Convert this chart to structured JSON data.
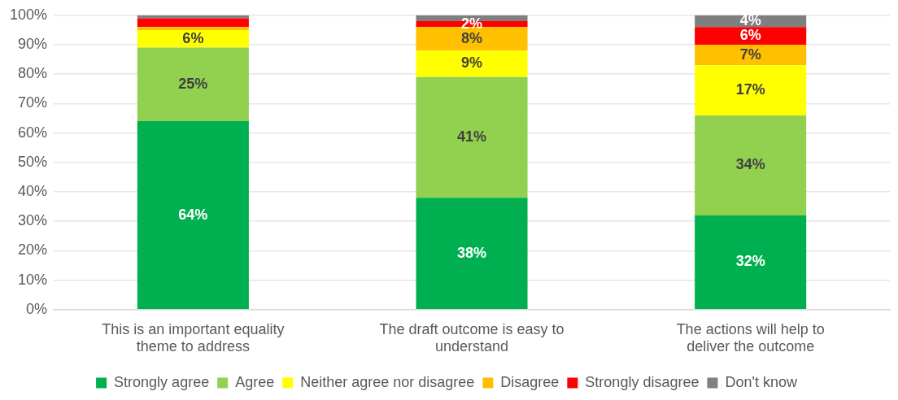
{
  "chart_data": {
    "type": "bar",
    "stacked": true,
    "categories": [
      "This is an important equality theme to address",
      "The draft outcome is easy to understand",
      "The actions will help to deliver the outcome"
    ],
    "series": [
      {
        "name": "Strongly agree",
        "color": "#00b050",
        "values": [
          64,
          38,
          32
        ],
        "value_labels": [
          "64%",
          "38%",
          "32%"
        ]
      },
      {
        "name": "Agree",
        "color": "#92d050",
        "values": [
          25,
          41,
          34
        ],
        "value_labels": [
          "25%",
          "41%",
          "34%"
        ]
      },
      {
        "name": "Neither agree nor disagree",
        "color": "#ffff00",
        "values": [
          6,
          9,
          17
        ],
        "value_labels": [
          "6%",
          "9%",
          "17%"
        ]
      },
      {
        "name": "Disagree",
        "color": "#ffc000",
        "values": [
          1,
          8,
          7
        ],
        "value_labels": [
          null,
          "8%",
          "7%"
        ]
      },
      {
        "name": "Strongly disagree",
        "color": "#ff0000",
        "values": [
          3,
          2,
          6
        ],
        "value_labels": [
          null,
          "2%",
          "6%"
        ]
      },
      {
        "name": "Don't know",
        "color": "#7f7f7f",
        "values": [
          1,
          2,
          4
        ],
        "value_labels": [
          null,
          null,
          "4%"
        ]
      }
    ],
    "ylim": [
      0,
      100
    ],
    "yticks": [
      {
        "value": 0,
        "label": "0%"
      },
      {
        "value": 10,
        "label": "10%"
      },
      {
        "value": 20,
        "label": "20%"
      },
      {
        "value": 30,
        "label": "30%"
      },
      {
        "value": 40,
        "label": "40%"
      },
      {
        "value": 50,
        "label": "50%"
      },
      {
        "value": 60,
        "label": "60%"
      },
      {
        "value": 70,
        "label": "70%"
      },
      {
        "value": 80,
        "label": "80%"
      },
      {
        "value": 90,
        "label": "90%"
      },
      {
        "value": 100,
        "label": "100%"
      }
    ],
    "grid": "y",
    "legend": "bottom"
  }
}
